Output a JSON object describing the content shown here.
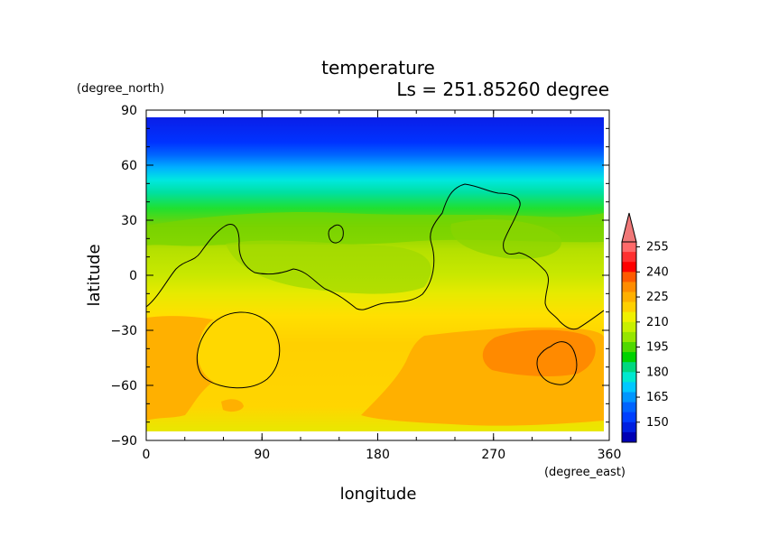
{
  "chart_data": {
    "type": "heatmap",
    "title": "temperature",
    "subtitle": "Ls = 251.85260 degree",
    "xlabel": "longitude",
    "ylabel": "latitude",
    "x_units": "(degree_east)",
    "y_units": "(degree_north)",
    "xlim": [
      0,
      360
    ],
    "ylim": [
      -90,
      90
    ],
    "x_ticks": [
      "0",
      "90",
      "180",
      "270",
      "360"
    ],
    "y_ticks": [
      "90",
      "60",
      "30",
      "0",
      "−30",
      "−60",
      "−90"
    ],
    "colorbar_labels": [
      "255",
      "240",
      "225",
      "210",
      "195",
      "180",
      "165",
      "150"
    ],
    "latitude_band_temperature_K": [
      {
        "lat": 85,
        "value": 140
      },
      {
        "lat": 75,
        "value": 147
      },
      {
        "lat": 65,
        "value": 158
      },
      {
        "lat": 60,
        "value": 172
      },
      {
        "lat": 55,
        "value": 180
      },
      {
        "lat": 45,
        "value": 188
      },
      {
        "lat": 35,
        "value": 196
      },
      {
        "lat": 25,
        "value": 205
      },
      {
        "lat": 15,
        "value": 210
      },
      {
        "lat": 5,
        "value": 215
      },
      {
        "lat": -5,
        "value": 220
      },
      {
        "lat": -20,
        "value": 225
      },
      {
        "lat": -40,
        "value": 228
      },
      {
        "lat": -60,
        "value": 230
      },
      {
        "lat": -75,
        "value": 229
      },
      {
        "lat": -85,
        "value": 226
      }
    ],
    "grid": false,
    "colorbar": "right"
  }
}
